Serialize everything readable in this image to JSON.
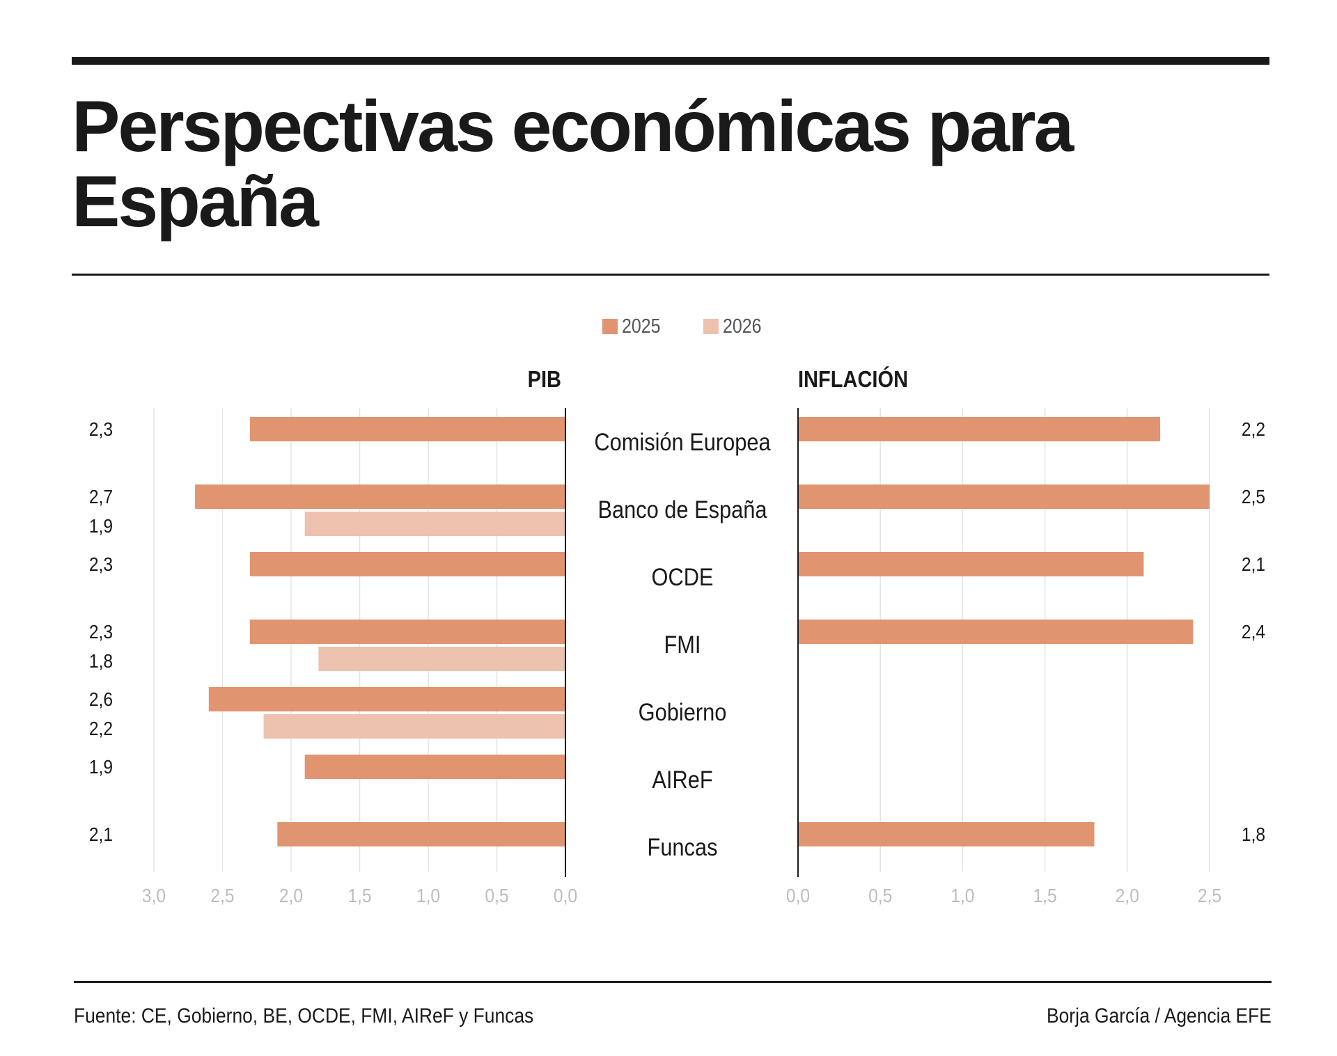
{
  "title": "Perspectivas económicas para España",
  "source": "Fuente: CE, Gobierno, BE, OCDE, FMI, AIReF y Funcas",
  "credit": "Borja García / Agencia EFE",
  "colors": {
    "c2025": "#e09470",
    "c2026": "#ecc2ae",
    "text": "#1a1a1a",
    "grid": "#e3e3e3",
    "tick": "#bdbdbd"
  },
  "chart_data": {
    "type": "bar",
    "legend": [
      {
        "label": "2025",
        "color": "#e09470"
      },
      {
        "label": "2026",
        "color": "#ecc2ae"
      }
    ],
    "categories": [
      "Comisión Europea",
      "Banco de España",
      "OCDE",
      "FMI",
      "Gobierno",
      "AIReF",
      "Funcas"
    ],
    "panels": [
      {
        "id": "pib",
        "title": "PIB",
        "direction": "left",
        "xlim": [
          0,
          3
        ],
        "ticks": [
          "3,0",
          "2,5",
          "2,0",
          "1,5",
          "1,0",
          "0,5",
          "0,0"
        ],
        "series": [
          {
            "name": "2025",
            "values": [
              2.3,
              2.7,
              2.3,
              2.3,
              2.6,
              1.9,
              2.1
            ],
            "labels": [
              "2,3",
              "2,7",
              "2,3",
              "2,3",
              "2,6",
              "1,9",
              "2,1"
            ]
          },
          {
            "name": "2026",
            "values": [
              null,
              1.9,
              null,
              1.8,
              2.2,
              null,
              null
            ],
            "labels": [
              null,
              "1,9",
              null,
              "1,8",
              "2,2",
              null,
              null
            ]
          }
        ]
      },
      {
        "id": "inflacion",
        "title": "INFLACIÓN",
        "direction": "right",
        "xlim": [
          0,
          2.5
        ],
        "ticks": [
          "0,0",
          "0,5",
          "1,0",
          "1,5",
          "2,0",
          "2,5"
        ],
        "series": [
          {
            "name": "2025",
            "values": [
              2.2,
              2.5,
              2.1,
              2.4,
              null,
              null,
              1.8
            ],
            "labels": [
              "2,2",
              "2,5",
              "2,1",
              "2,4",
              null,
              null,
              "1,8"
            ]
          }
        ]
      }
    ]
  }
}
